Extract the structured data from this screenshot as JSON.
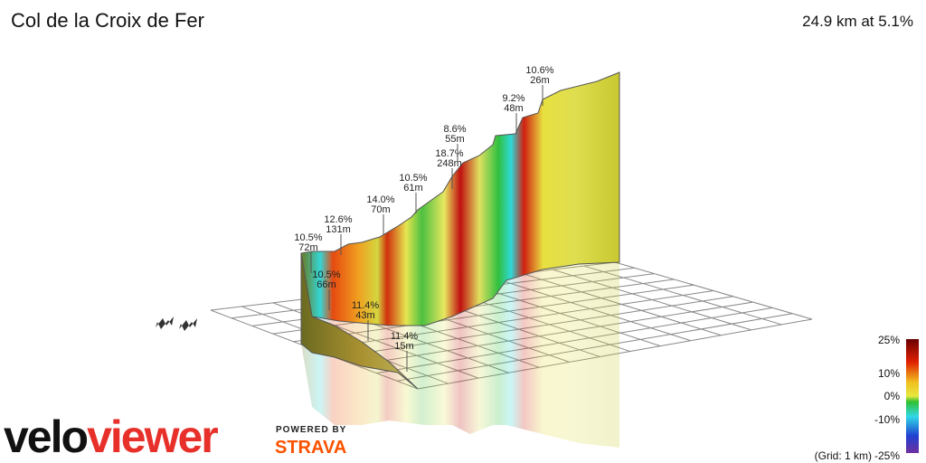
{
  "header": {
    "title": "Col de la Croix de Fer",
    "summary": "24.9 km at 5.1%"
  },
  "annotations": [
    {
      "grade": "10.5%",
      "length": "72m"
    },
    {
      "grade": "10.5%",
      "length": "66m"
    },
    {
      "grade": "11.4%",
      "length": "43m"
    },
    {
      "grade": "11.4%",
      "length": "15m"
    },
    {
      "grade": "12.6%",
      "length": "131m"
    },
    {
      "grade": "14.0%",
      "length": "70m"
    },
    {
      "grade": "10.5%",
      "length": "61m"
    },
    {
      "grade": "18.7%",
      "length": "248m"
    },
    {
      "grade": "8.6%",
      "length": "55m"
    },
    {
      "grade": "9.2%",
      "length": "48m"
    },
    {
      "grade": "10.6%",
      "length": "26m"
    }
  ],
  "legend": {
    "ticks": [
      "25%",
      "10%",
      "0%",
      "-10%",
      "-25%"
    ],
    "grid_note": "(Grid: 1 km)"
  },
  "branding": {
    "logo_start": "velo",
    "logo_end": "viewer",
    "powered": "POWERED BY",
    "strava": "STRAVA"
  }
}
